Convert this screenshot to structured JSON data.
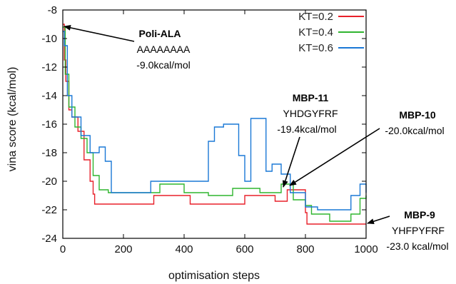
{
  "chart_data": {
    "type": "line",
    "xlabel": "optimisation steps",
    "ylabel": "vina score (kcal/mol)",
    "xlim": [
      0,
      1000
    ],
    "ylim": [
      -24,
      -8
    ],
    "x_ticks": [
      0,
      200,
      400,
      600,
      800,
      1000
    ],
    "y_ticks": [
      -8,
      -10,
      -12,
      -14,
      -16,
      -18,
      -20,
      -22,
      -24
    ],
    "legend_position": "top-right",
    "series": [
      {
        "name": "KT=0.2",
        "color": "#e8202a",
        "points": [
          [
            0,
            -9.0
          ],
          [
            5,
            -11.5
          ],
          [
            10,
            -13
          ],
          [
            20,
            -15
          ],
          [
            30,
            -15.5
          ],
          [
            50,
            -16.5
          ],
          [
            70,
            -18.5
          ],
          [
            90,
            -20
          ],
          [
            100,
            -20.9
          ],
          [
            105,
            -21.6
          ],
          [
            180,
            -21.6
          ],
          [
            260,
            -21.6
          ],
          [
            300,
            -21.0
          ],
          [
            420,
            -21.6
          ],
          [
            500,
            -21.6
          ],
          [
            600,
            -21.0
          ],
          [
            700,
            -21.4
          ],
          [
            740,
            -20.6
          ],
          [
            800,
            -22.2
          ],
          [
            805,
            -23.0
          ],
          [
            900,
            -23.0
          ],
          [
            1000,
            -23.0
          ]
        ]
      },
      {
        "name": "KT=0.4",
        "color": "#2fb52f",
        "points": [
          [
            0,
            -9.2
          ],
          [
            8,
            -12.5
          ],
          [
            20,
            -14.8
          ],
          [
            40,
            -16.2
          ],
          [
            60,
            -17.0
          ],
          [
            80,
            -18.0
          ],
          [
            100,
            -19.6
          ],
          [
            120,
            -20.6
          ],
          [
            150,
            -20.8
          ],
          [
            300,
            -20.8
          ],
          [
            320,
            -20.2
          ],
          [
            400,
            -20.8
          ],
          [
            480,
            -21.0
          ],
          [
            560,
            -20.5
          ],
          [
            650,
            -20.8
          ],
          [
            720,
            -20.2
          ],
          [
            760,
            -21.3
          ],
          [
            800,
            -21.7
          ],
          [
            820,
            -22.3
          ],
          [
            880,
            -22.8
          ],
          [
            950,
            -22.3
          ],
          [
            980,
            -21.2
          ],
          [
            1000,
            -21.0
          ]
        ]
      },
      {
        "name": "KT=0.6",
        "color": "#1a78d6",
        "points": [
          [
            0,
            -9.5
          ],
          [
            5,
            -10.5
          ],
          [
            15,
            -14.0
          ],
          [
            30,
            -15.5
          ],
          [
            60,
            -16.8
          ],
          [
            90,
            -18.0
          ],
          [
            120,
            -17.6
          ],
          [
            140,
            -18.6
          ],
          [
            160,
            -20.8
          ],
          [
            280,
            -20.8
          ],
          [
            290,
            -20.0
          ],
          [
            460,
            -20.0
          ],
          [
            480,
            -17.2
          ],
          [
            500,
            -16.2
          ],
          [
            530,
            -16.0
          ],
          [
            560,
            -16.0
          ],
          [
            580,
            -18.2
          ],
          [
            600,
            -20.0
          ],
          [
            620,
            -15.6
          ],
          [
            650,
            -15.6
          ],
          [
            670,
            -19.3
          ],
          [
            690,
            -18.8
          ],
          [
            720,
            -19.5
          ],
          [
            750,
            -20.8
          ],
          [
            780,
            -20.8
          ],
          [
            800,
            -21.8
          ],
          [
            840,
            -22.0
          ],
          [
            900,
            -22.0
          ],
          [
            950,
            -21.0
          ],
          [
            980,
            -20.2
          ],
          [
            1000,
            -20.8
          ]
        ]
      }
    ],
    "annotations": [
      {
        "title": "Poli-ALA",
        "sequence": "AAAAAAAA",
        "score": "-9.0kcal/mol",
        "point": [
          2,
          -9.0
        ]
      },
      {
        "title": "MBP-11",
        "sequence": "YHDGYFRF",
        "score": "-19.4kcal/mol",
        "point": [
          722,
          -20.7
        ]
      },
      {
        "title": "MBP-10",
        "score": "-20.0kcal/mol",
        "point": [
          745,
          -20.4
        ]
      },
      {
        "title": "MBP-9",
        "sequence": "YHFPYFRF",
        "score": "-23.0 kcal/mol",
        "point": [
          1000,
          -23.0
        ]
      }
    ]
  }
}
